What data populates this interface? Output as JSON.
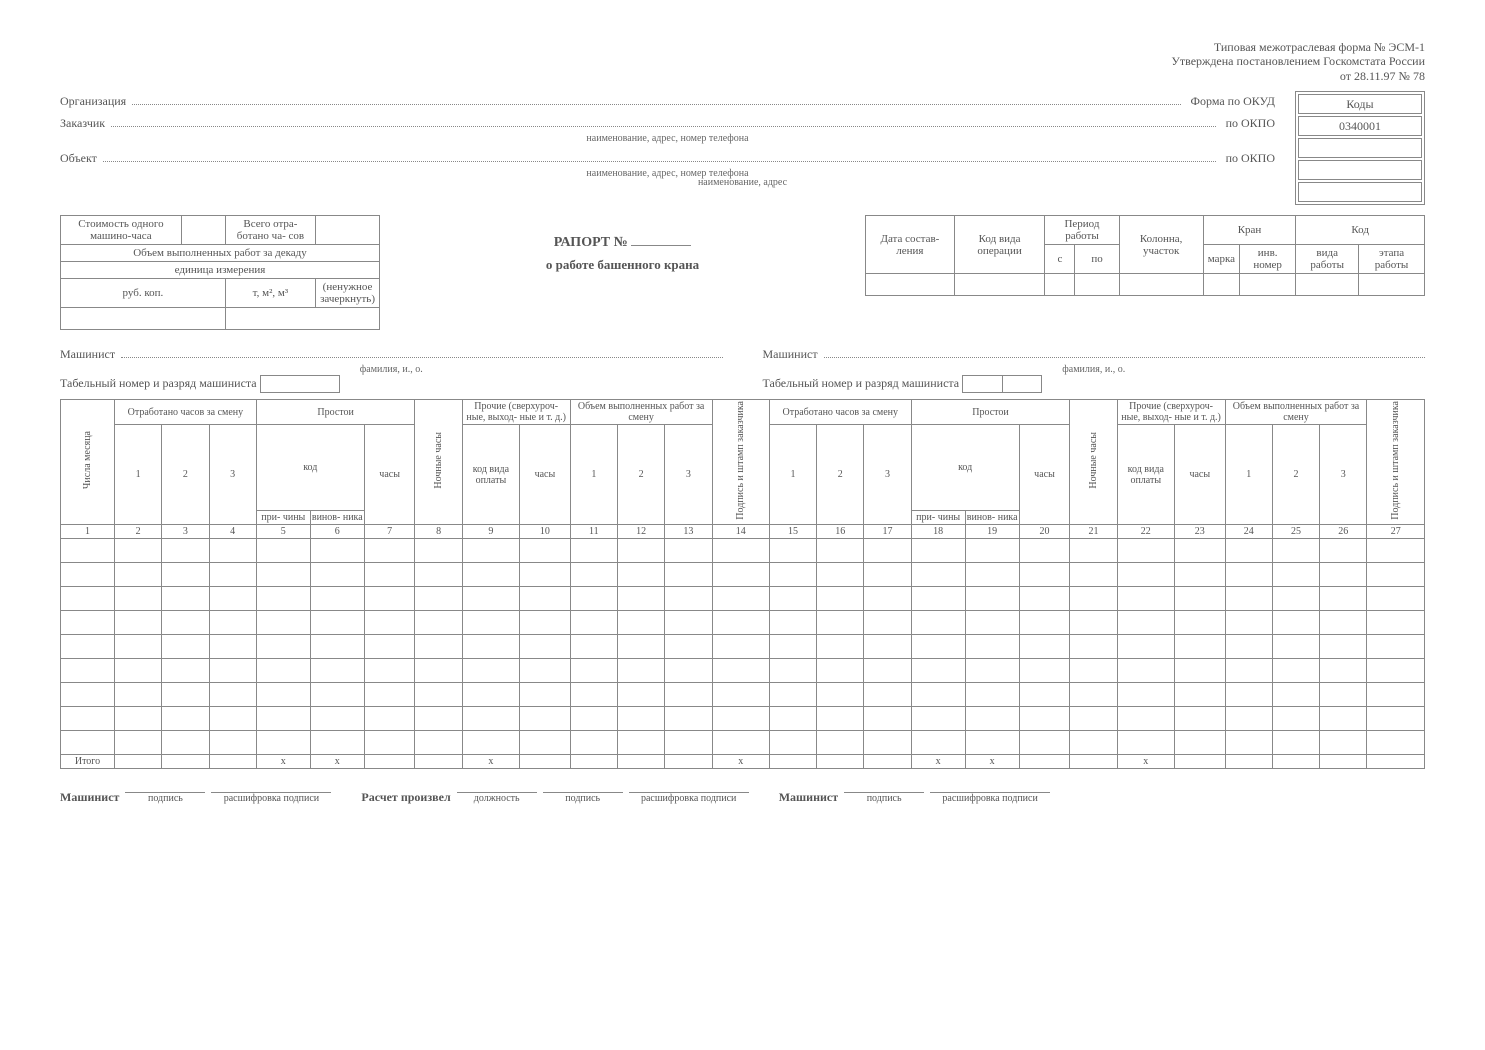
{
  "header": {
    "form_line1": "Типовая межотраслевая форма № ЭСМ-1",
    "form_line2": "Утверждена постановлением Госкомстата России",
    "form_line3": "от 28.11.97 № 78"
  },
  "codes": {
    "title": "Коды",
    "okud_label": "Форма по ОКУД",
    "okud_value": "0340001",
    "okpo1_label": "по ОКПО",
    "okpo2_label": "по ОКПО"
  },
  "fields": {
    "org_label": "Организация",
    "org_sub": "наименование, адрес, номер телефона",
    "customer_label": "Заказчик",
    "customer_sub": "наименование, адрес, номер телефона",
    "object_label": "Объект",
    "object_sub": "наименование, адрес"
  },
  "left_box": {
    "cost_label": "Стоимость одного машино-часа",
    "total_label": "Всего отра- ботано ча- сов",
    "volume_label": "Объем выполненных работ за декаду",
    "unit_label": "единица измерения",
    "rub": "руб. коп.",
    "units": "т, м², м³",
    "strike_note": "(ненужное зачеркнуть)"
  },
  "title": {
    "line1": "РАПОРТ №",
    "line2": "о работе башенного крана"
  },
  "right_box": {
    "date_label": "Дата состав- ления",
    "op_code_label": "Код вида операции",
    "period_label": "Период работы",
    "period_from": "с",
    "period_to": "по",
    "column_label": "Колонна, участок",
    "crane_label": "Кран",
    "crane_brand": "марка",
    "crane_inv": "инв. номер",
    "code_label": "Код",
    "code_work": "вида работы",
    "code_stage": "этапа работы"
  },
  "machinist": {
    "label": "Машинист",
    "sub": "фамилия, и., о.",
    "tab_label": "Табельный номер и разряд машиниста"
  },
  "main_headers": {
    "date_col": "Числа месяца",
    "worked": "Отработано часов за смену",
    "downtime": "Простои",
    "downtime_code": "код",
    "reason": "при- чины",
    "culprit": "винов- ника",
    "hours": "часы",
    "night": "Ночные часы",
    "other": "Прочие (сверхуроч- ные, выход- ные и т. д.)",
    "pay_code": "код вида оплаты",
    "volume": "Объем выполненных работ за смену",
    "sign": "Подпись и штамп заказчика",
    "col_nums_left": [
      "1",
      "2",
      "3",
      "4",
      "5",
      "6",
      "7",
      "8",
      "9",
      "10",
      "11",
      "12",
      "13",
      "14"
    ],
    "col_nums_right": [
      "15",
      "16",
      "17",
      "18",
      "19",
      "20",
      "21",
      "22",
      "23",
      "24",
      "25",
      "26",
      "27"
    ],
    "sub123": [
      "1",
      "2",
      "3"
    ],
    "itogo": "Итого",
    "x": "х"
  },
  "footer": {
    "machinist": "Машинист",
    "sign": "подпись",
    "decode": "расшифровка подписи",
    "calc": "Расчет произвел",
    "position": "должность"
  }
}
